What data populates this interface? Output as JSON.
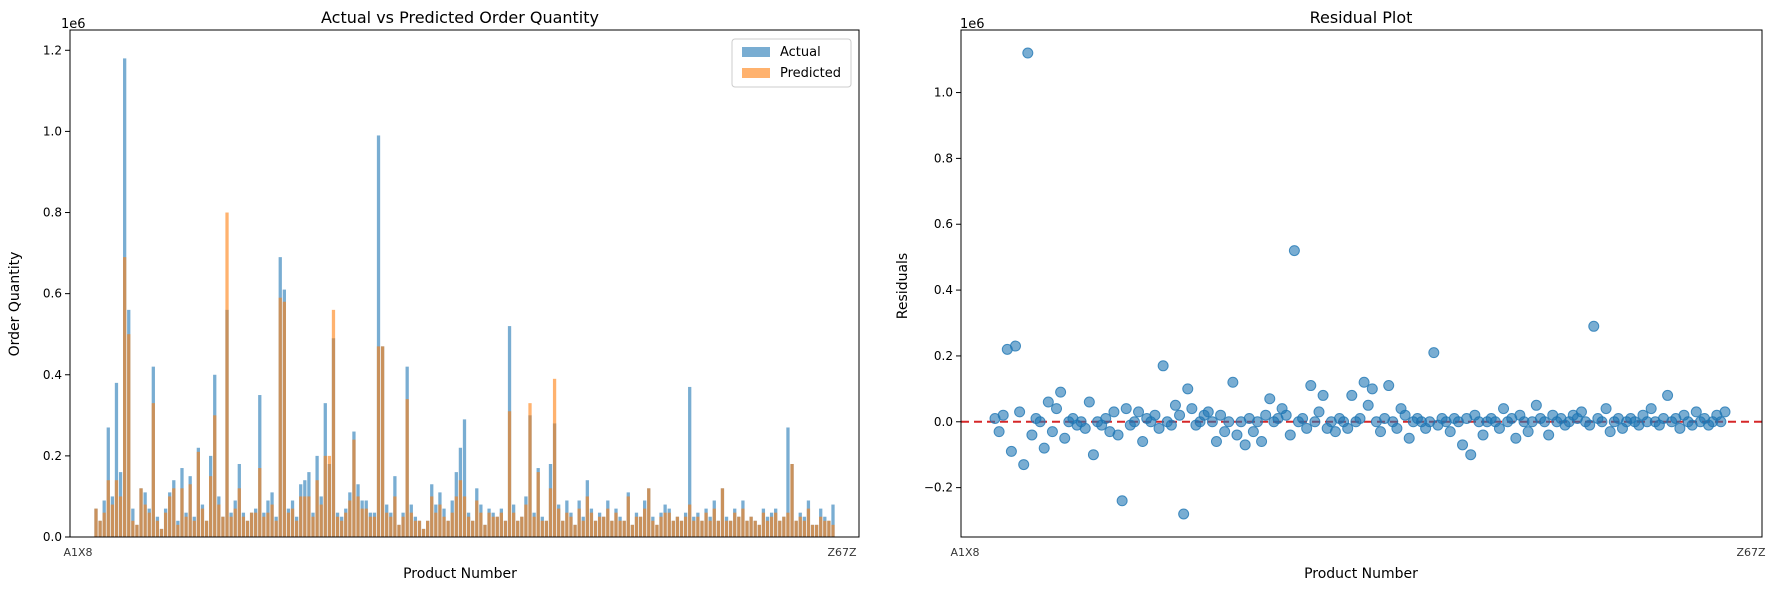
{
  "chart_data": [
    {
      "type": "bar",
      "title": "Actual vs Predicted Order Quantity",
      "xlabel": "Product Number",
      "ylabel": "Order Quantity",
      "offset_label": "1e6",
      "ylim": [
        0,
        1.25
      ],
      "yticks": [
        0.0,
        0.2,
        0.4,
        0.6,
        0.8,
        1.0,
        1.2
      ],
      "ytick_labels": [
        "0.0",
        "0.2",
        "0.4",
        "0.6",
        "0.8",
        "1.0",
        "1.2"
      ],
      "x_first_label": "A1X8",
      "x_last_label": "Z67Z",
      "legend": {
        "position": "top-right",
        "entries": [
          "Actual",
          "Predicted"
        ]
      },
      "series": [
        {
          "name": "Actual",
          "color": "#1f77b4",
          "values": [
            0.07,
            0.04,
            0.09,
            0.27,
            0.1,
            0.38,
            0.16,
            1.18,
            0.56,
            0.07,
            0.03,
            0.12,
            0.11,
            0.07,
            0.42,
            0.05,
            0.02,
            0.07,
            0.11,
            0.14,
            0.04,
            0.17,
            0.06,
            0.15,
            0.05,
            0.22,
            0.08,
            0.04,
            0.2,
            0.4,
            0.1,
            0.05,
            0.56,
            0.06,
            0.09,
            0.18,
            0.06,
            0.04,
            0.06,
            0.07,
            0.35,
            0.06,
            0.09,
            0.11,
            0.05,
            0.69,
            0.61,
            0.07,
            0.09,
            0.05,
            0.13,
            0.14,
            0.16,
            0.06,
            0.2,
            0.1,
            0.33,
            0.18,
            0.49,
            0.06,
            0.05,
            0.07,
            0.11,
            0.26,
            0.13,
            0.09,
            0.09,
            0.06,
            0.06,
            0.99,
            0.47,
            0.08,
            0.06,
            0.15,
            0.03,
            0.06,
            0.42,
            0.08,
            0.05,
            0.04,
            0.02,
            0.04,
            0.13,
            0.08,
            0.11,
            0.07,
            0.04,
            0.09,
            0.16,
            0.22,
            0.29,
            0.06,
            0.04,
            0.12,
            0.08,
            0.03,
            0.07,
            0.06,
            0.05,
            0.07,
            0.04,
            0.52,
            0.08,
            0.04,
            0.05,
            0.1,
            0.3,
            0.06,
            0.17,
            0.05,
            0.04,
            0.18,
            0.28,
            0.08,
            0.04,
            0.09,
            0.06,
            0.03,
            0.09,
            0.05,
            0.14,
            0.07,
            0.04,
            0.06,
            0.05,
            0.09,
            0.04,
            0.07,
            0.05,
            0.04,
            0.11,
            0.03,
            0.06,
            0.05,
            0.09,
            0.12,
            0.05,
            0.03,
            0.06,
            0.08,
            0.07,
            0.04,
            0.05,
            0.04,
            0.06,
            0.37,
            0.05,
            0.06,
            0.04,
            0.07,
            0.05,
            0.09,
            0.04,
            0.12,
            0.05,
            0.04,
            0.07,
            0.05,
            0.09,
            0.04,
            0.05,
            0.04,
            0.03,
            0.07,
            0.05,
            0.06,
            0.07,
            0.04,
            0.05,
            0.27,
            0.18,
            0.04,
            0.06,
            0.05,
            0.09,
            0.03,
            0.03,
            0.07,
            0.05,
            0.04,
            0.08
          ]
        },
        {
          "name": "Predicted",
          "color": "#ff7f0e",
          "values": [
            0.07,
            0.04,
            0.06,
            0.14,
            0.08,
            0.14,
            0.1,
            0.69,
            0.5,
            0.04,
            0.03,
            0.12,
            0.08,
            0.06,
            0.33,
            0.04,
            0.02,
            0.06,
            0.1,
            0.12,
            0.03,
            0.12,
            0.05,
            0.13,
            0.04,
            0.21,
            0.07,
            0.04,
            0.15,
            0.3,
            0.08,
            0.05,
            0.8,
            0.05,
            0.07,
            0.12,
            0.05,
            0.04,
            0.06,
            0.06,
            0.17,
            0.05,
            0.06,
            0.08,
            0.04,
            0.59,
            0.58,
            0.06,
            0.07,
            0.04,
            0.1,
            0.1,
            0.1,
            0.05,
            0.14,
            0.08,
            0.2,
            0.2,
            0.56,
            0.05,
            0.04,
            0.06,
            0.09,
            0.24,
            0.1,
            0.07,
            0.07,
            0.05,
            0.05,
            0.47,
            0.47,
            0.06,
            0.05,
            0.1,
            0.03,
            0.05,
            0.34,
            0.06,
            0.04,
            0.04,
            0.02,
            0.04,
            0.1,
            0.06,
            0.08,
            0.05,
            0.04,
            0.06,
            0.1,
            0.14,
            0.1,
            0.05,
            0.04,
            0.09,
            0.06,
            0.03,
            0.06,
            0.05,
            0.05,
            0.06,
            0.04,
            0.31,
            0.06,
            0.04,
            0.05,
            0.08,
            0.33,
            0.05,
            0.16,
            0.04,
            0.04,
            0.12,
            0.39,
            0.07,
            0.04,
            0.06,
            0.05,
            0.03,
            0.07,
            0.04,
            0.1,
            0.06,
            0.04,
            0.05,
            0.05,
            0.07,
            0.04,
            0.06,
            0.04,
            0.04,
            0.1,
            0.03,
            0.05,
            0.05,
            0.07,
            0.12,
            0.04,
            0.03,
            0.05,
            0.06,
            0.06,
            0.04,
            0.05,
            0.04,
            0.05,
            0.08,
            0.04,
            0.05,
            0.04,
            0.06,
            0.04,
            0.07,
            0.04,
            0.12,
            0.04,
            0.04,
            0.06,
            0.05,
            0.07,
            0.04,
            0.05,
            0.04,
            0.03,
            0.06,
            0.04,
            0.05,
            0.06,
            0.04,
            0.05,
            0.06,
            0.18,
            0.04,
            0.05,
            0.04,
            0.07,
            0.03,
            0.03,
            0.05,
            0.04,
            0.04,
            0.03
          ]
        }
      ]
    },
    {
      "type": "scatter",
      "title": "Residual Plot",
      "xlabel": "Product Number",
      "ylabel": "Residuals",
      "offset_label": "1e6",
      "ylim": [
        -0.35,
        1.19
      ],
      "yticks": [
        -0.2,
        0.0,
        0.2,
        0.4,
        0.6,
        0.8,
        1.0
      ],
      "ytick_labels": [
        "−0.2",
        "0.0",
        "0.2",
        "0.4",
        "0.6",
        "0.8",
        "1.0"
      ],
      "x_first_label": "A1X8",
      "x_last_label": "Z67Z",
      "reference_line": {
        "y": 0,
        "color": "#d62728",
        "style": "dashed"
      },
      "point_color": "#1f77b4",
      "series": [
        {
          "values": [
            0.01,
            -0.03,
            0.02,
            0.22,
            -0.09,
            0.23,
            0.03,
            -0.13,
            1.12,
            -0.04,
            0.01,
            0.0,
            -0.08,
            0.06,
            -0.03,
            0.04,
            0.09,
            -0.05,
            0.0,
            0.01,
            -0.01,
            0.0,
            -0.02,
            0.06,
            -0.1,
            0.0,
            -0.01,
            0.01,
            -0.03,
            0.03,
            -0.04,
            -0.24,
            0.04,
            -0.01,
            0.0,
            0.03,
            -0.06,
            0.01,
            0.0,
            0.02,
            -0.02,
            0.17,
            0.0,
            -0.01,
            0.05,
            0.02,
            -0.28,
            0.1,
            0.04,
            -0.01,
            0.0,
            0.02,
            0.03,
            0.0,
            -0.06,
            0.02,
            -0.03,
            0.0,
            0.12,
            -0.04,
            0.0,
            -0.07,
            0.01,
            -0.03,
            0.0,
            -0.06,
            0.02,
            0.07,
            0.0,
            0.01,
            0.04,
            0.02,
            -0.04,
            0.52,
            0.0,
            0.01,
            -0.02,
            0.11,
            0.0,
            0.03,
            0.08,
            -0.02,
            0.0,
            -0.03,
            0.01,
            0.0,
            -0.02,
            0.08,
            0.0,
            0.01,
            0.12,
            0.05,
            0.1,
            0.0,
            -0.03,
            0.01,
            0.11,
            0.0,
            -0.02,
            0.04,
            0.02,
            -0.05,
            0.0,
            0.01,
            0.0,
            -0.02,
            0.0,
            0.21,
            -0.01,
            0.01,
            0.0,
            -0.03,
            0.01,
            0.0,
            -0.07,
            0.01,
            -0.1,
            0.02,
            0.0,
            -0.04,
            0.0,
            0.01,
            0.0,
            -0.02,
            0.04,
            0.0,
            0.01,
            -0.05,
            0.02,
            0.0,
            -0.03,
            0.0,
            0.05,
            0.01,
            0.0,
            -0.04,
            0.02,
            0.0,
            0.01,
            -0.01,
            0.0,
            0.02,
            0.01,
            0.03,
            0.0,
            -0.01,
            0.29,
            0.01,
            0.0,
            0.04,
            -0.03,
            0.0,
            0.01,
            -0.02,
            0.0,
            0.01,
            0.0,
            -0.01,
            0.02,
            0.0,
            0.04,
            0.0,
            -0.01,
            0.01,
            0.08,
            0.0,
            0.01,
            -0.02,
            0.02,
            0.0,
            -0.01,
            0.03,
            0.0,
            0.01,
            -0.01,
            0.0,
            0.02,
            0.0,
            0.03
          ]
        }
      ]
    }
  ]
}
